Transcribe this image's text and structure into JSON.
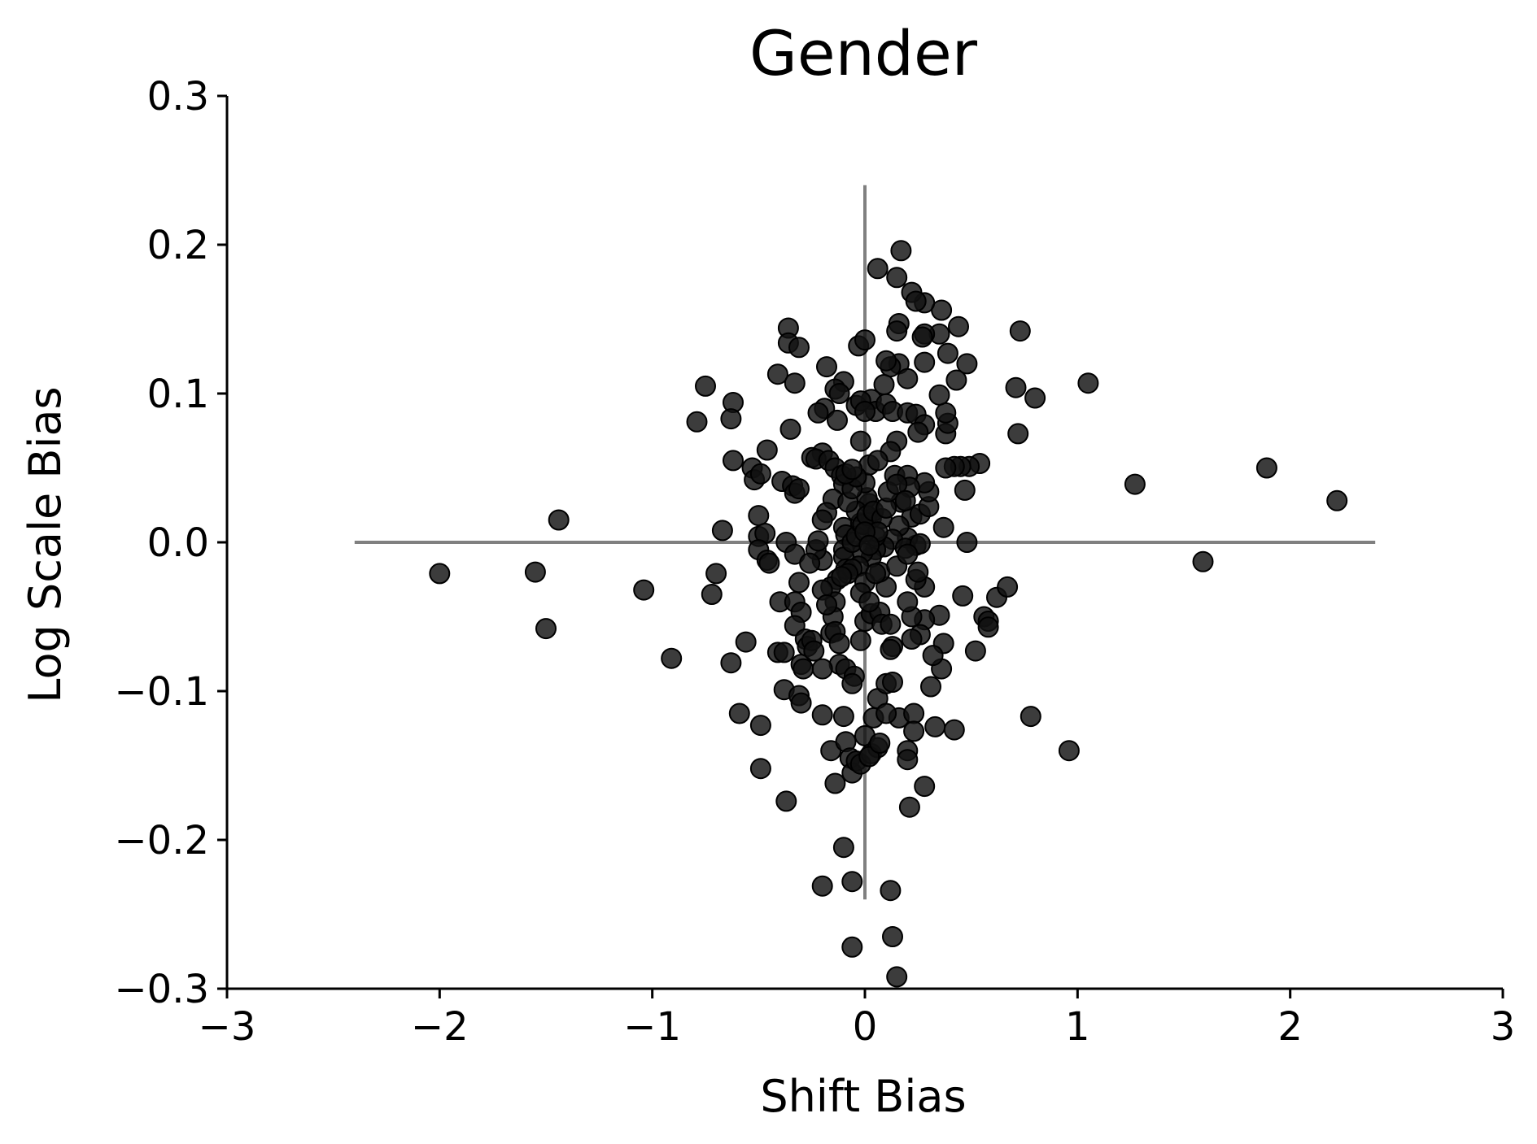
{
  "chart_data": {
    "type": "scatter",
    "title": "Gender",
    "xlabel": "Shift Bias",
    "ylabel": "Log Scale Bias",
    "xlim": [
      -3,
      3
    ],
    "ylim": [
      -0.3,
      0.3
    ],
    "xticks": [
      "−3",
      "−2",
      "−1",
      "0",
      "1",
      "2",
      "3"
    ],
    "yticks": [
      "−0.3",
      "−0.2",
      "−0.1",
      "0.0",
      "0.1",
      "0.2",
      "0.3"
    ],
    "grid": false,
    "reference_lines": {
      "horizontal": {
        "y": 0,
        "x_from": -2.4,
        "x_to": 2.4
      },
      "vertical": {
        "x": 0,
        "y_from": -0.24,
        "y_to": 0.24
      },
      "color": "#808080"
    },
    "marker_color": "#111111",
    "points": [
      [
        -2.0,
        -0.021
      ],
      [
        -1.55,
        -0.02
      ],
      [
        -1.44,
        0.015
      ],
      [
        -1.5,
        -0.058
      ],
      [
        -1.04,
        -0.032
      ],
      [
        -0.91,
        -0.078
      ],
      [
        -0.75,
        0.105
      ],
      [
        -0.79,
        0.081
      ],
      [
        -0.62,
        0.094
      ],
      [
        -0.63,
        0.083
      ],
      [
        -0.62,
        0.055
      ],
      [
        -0.67,
        0.008
      ],
      [
        -0.7,
        -0.021
      ],
      [
        -0.72,
        -0.035
      ],
      [
        -0.63,
        -0.081
      ],
      [
        -0.56,
        -0.067
      ],
      [
        -0.59,
        -0.115
      ],
      [
        -0.49,
        -0.123
      ],
      [
        -0.49,
        -0.152
      ],
      [
        -0.37,
        -0.174
      ],
      [
        -0.53,
        0.05
      ],
      [
        -0.52,
        0.042
      ],
      [
        -0.49,
        0.046
      ],
      [
        -0.46,
        0.062
      ],
      [
        -0.41,
        0.113
      ],
      [
        -0.36,
        0.144
      ],
      [
        -0.36,
        0.134
      ],
      [
        -0.31,
        0.131
      ],
      [
        -0.33,
        0.107
      ],
      [
        -0.35,
        0.076
      ],
      [
        -0.39,
        0.041
      ],
      [
        -0.34,
        0.038
      ],
      [
        -0.33,
        0.033
      ],
      [
        -0.31,
        0.036
      ],
      [
        -0.5,
        0.018
      ],
      [
        -0.5,
        0.004
      ],
      [
        -0.47,
        0.006
      ],
      [
        -0.5,
        -0.005
      ],
      [
        -0.46,
        -0.012
      ],
      [
        -0.45,
        -0.014
      ],
      [
        -0.37,
        0.0
      ],
      [
        -0.33,
        -0.008
      ],
      [
        -0.31,
        -0.027
      ],
      [
        -0.4,
        -0.04
      ],
      [
        -0.33,
        -0.04
      ],
      [
        -0.3,
        -0.047
      ],
      [
        -0.33,
        -0.056
      ],
      [
        -0.28,
        -0.065
      ],
      [
        -0.27,
        -0.07
      ],
      [
        -0.3,
        -0.082
      ],
      [
        -0.41,
        -0.074
      ],
      [
        -0.38,
        -0.074
      ],
      [
        -0.38,
        -0.099
      ],
      [
        -0.31,
        -0.103
      ],
      [
        -0.3,
        -0.108
      ],
      [
        -0.2,
        -0.116
      ],
      [
        -0.16,
        -0.14
      ],
      [
        -0.14,
        -0.162
      ],
      [
        -0.1,
        -0.117
      ],
      [
        -0.09,
        -0.134
      ],
      [
        -0.07,
        -0.145
      ],
      [
        -0.06,
        -0.155
      ],
      [
        -0.2,
        -0.231
      ],
      [
        -0.06,
        -0.228
      ],
      [
        -0.1,
        -0.205
      ],
      [
        -0.06,
        -0.272
      ],
      [
        0.12,
        -0.234
      ],
      [
        0.13,
        -0.265
      ],
      [
        0.15,
        -0.292
      ],
      [
        -0.04,
        -0.147
      ],
      [
        -0.02,
        -0.149
      ],
      [
        0.0,
        -0.13
      ],
      [
        0.03,
        -0.142
      ],
      [
        0.06,
        -0.138
      ],
      [
        0.02,
        -0.144
      ],
      [
        0.04,
        -0.118
      ],
      [
        0.06,
        -0.105
      ],
      [
        0.1,
        -0.095
      ],
      [
        0.13,
        -0.094
      ],
      [
        0.16,
        -0.118
      ],
      [
        0.2,
        -0.14
      ],
      [
        0.2,
        -0.146
      ],
      [
        0.23,
        -0.115
      ],
      [
        0.23,
        -0.127
      ],
      [
        0.28,
        -0.164
      ],
      [
        0.21,
        -0.178
      ],
      [
        0.33,
        -0.124
      ],
      [
        0.42,
        -0.126
      ],
      [
        0.31,
        -0.097
      ],
      [
        0.36,
        -0.085
      ],
      [
        0.37,
        -0.068
      ],
      [
        0.32,
        -0.076
      ],
      [
        0.35,
        -0.049
      ],
      [
        0.28,
        -0.052
      ],
      [
        0.26,
        -0.062
      ],
      [
        0.22,
        -0.065
      ],
      [
        0.22,
        -0.05
      ],
      [
        0.2,
        -0.04
      ],
      [
        0.28,
        -0.03
      ],
      [
        0.24,
        -0.025
      ],
      [
        0.25,
        -0.02
      ],
      [
        0.24,
        -0.002
      ],
      [
        0.2,
        0.003
      ],
      [
        0.22,
        0.017
      ],
      [
        0.26,
        0.019
      ],
      [
        0.3,
        0.024
      ],
      [
        0.3,
        0.034
      ],
      [
        0.28,
        0.04
      ],
      [
        0.37,
        0.01
      ],
      [
        0.48,
        0.0
      ],
      [
        0.54,
        0.053
      ],
      [
        0.49,
        0.051
      ],
      [
        0.45,
        0.051
      ],
      [
        0.42,
        0.051
      ],
      [
        0.38,
        0.05
      ],
      [
        0.47,
        0.035
      ],
      [
        0.38,
        0.073
      ],
      [
        0.39,
        0.08
      ],
      [
        0.38,
        0.087
      ],
      [
        0.35,
        0.099
      ],
      [
        0.43,
        0.109
      ],
      [
        0.48,
        0.12
      ],
      [
        0.39,
        0.127
      ],
      [
        0.35,
        0.14
      ],
      [
        0.44,
        0.145
      ],
      [
        0.36,
        0.156
      ],
      [
        0.28,
        0.161
      ],
      [
        0.28,
        0.14
      ],
      [
        0.28,
        0.121
      ],
      [
        0.27,
        0.138
      ],
      [
        0.22,
        0.168
      ],
      [
        0.24,
        0.162
      ],
      [
        0.15,
        0.178
      ],
      [
        0.17,
        0.196
      ],
      [
        0.06,
        0.184
      ],
      [
        0.16,
        0.147
      ],
      [
        0.15,
        0.142
      ],
      [
        0.16,
        0.12
      ],
      [
        0.2,
        0.11
      ],
      [
        0.12,
        0.118
      ],
      [
        0.1,
        0.122
      ],
      [
        0.09,
        0.106
      ],
      [
        0.03,
        0.096
      ],
      [
        0.05,
        0.088
      ],
      [
        0.1,
        0.093
      ],
      [
        0.13,
        0.088
      ],
      [
        0.2,
        0.087
      ],
      [
        0.24,
        0.086
      ],
      [
        0.28,
        0.079
      ],
      [
        0.25,
        0.074
      ],
      [
        0.15,
        0.068
      ],
      [
        0.12,
        0.061
      ],
      [
        0.14,
        0.045
      ],
      [
        0.2,
        0.045
      ],
      [
        0.21,
        0.037
      ],
      [
        0.17,
        0.027
      ],
      [
        0.16,
        0.011
      ],
      [
        0.13,
        0.002
      ],
      [
        0.09,
        -0.003
      ],
      [
        0.05,
        -0.005
      ],
      [
        0.05,
        0.004
      ],
      [
        0.03,
        0.016
      ],
      [
        0.02,
        0.026
      ],
      [
        0.01,
        0.03
      ],
      [
        0.0,
        0.04
      ],
      [
        0.02,
        0.052
      ],
      [
        0.06,
        0.055
      ],
      [
        -0.02,
        0.068
      ],
      [
        -0.04,
        0.092
      ],
      [
        -0.02,
        0.095
      ],
      [
        0.0,
        0.088
      ],
      [
        -0.03,
        0.132
      ],
      [
        0.0,
        0.136
      ],
      [
        -0.1,
        0.108
      ],
      [
        -0.14,
        0.103
      ],
      [
        -0.18,
        0.118
      ],
      [
        -0.12,
        0.1
      ],
      [
        -0.19,
        0.09
      ],
      [
        -0.22,
        0.087
      ],
      [
        -0.13,
        0.082
      ],
      [
        -0.2,
        0.06
      ],
      [
        -0.25,
        0.057
      ],
      [
        -0.23,
        0.056
      ],
      [
        -0.17,
        0.055
      ],
      [
        -0.14,
        0.05
      ],
      [
        -0.11,
        0.045
      ],
      [
        -0.1,
        0.039
      ],
      [
        -0.15,
        0.029
      ],
      [
        -0.18,
        0.02
      ],
      [
        -0.2,
        0.015
      ],
      [
        -0.1,
        0.01
      ],
      [
        -0.09,
        0.005
      ],
      [
        -0.1,
        -0.005
      ],
      [
        -0.1,
        -0.01
      ],
      [
        -0.09,
        -0.018
      ],
      [
        -0.13,
        -0.025
      ],
      [
        -0.16,
        -0.03
      ],
      [
        -0.14,
        -0.04
      ],
      [
        -0.15,
        -0.05
      ],
      [
        -0.16,
        -0.061
      ],
      [
        -0.14,
        -0.06
      ],
      [
        -0.12,
        -0.068
      ],
      [
        -0.12,
        -0.082
      ],
      [
        -0.09,
        -0.085
      ],
      [
        -0.05,
        -0.09
      ],
      [
        -0.06,
        -0.095
      ],
      [
        -0.02,
        -0.066
      ],
      [
        0.0,
        -0.053
      ],
      [
        0.03,
        -0.048
      ],
      [
        0.07,
        -0.047
      ],
      [
        0.08,
        -0.055
      ],
      [
        0.12,
        -0.055
      ],
      [
        0.13,
        -0.07
      ],
      [
        0.12,
        -0.072
      ],
      [
        0.1,
        -0.03
      ],
      [
        0.07,
        -0.02
      ],
      [
        0.03,
        -0.01
      ],
      [
        -0.01,
        -0.007
      ],
      [
        -0.03,
        -0.016
      ],
      [
        -0.06,
        -0.018
      ],
      [
        -0.08,
        -0.021
      ],
      [
        -0.11,
        -0.023
      ],
      [
        -0.06,
        0.0
      ],
      [
        -0.04,
        0.004
      ],
      [
        -0.02,
        0.013
      ],
      [
        -0.04,
        0.021
      ],
      [
        -0.08,
        0.027
      ],
      [
        -0.06,
        0.036
      ],
      [
        -0.04,
        0.044
      ],
      [
        -0.09,
        0.046
      ],
      [
        -0.06,
        0.049
      ],
      [
        -0.01,
        0.012
      ],
      [
        0.01,
        0.018
      ],
      [
        0.04,
        0.021
      ],
      [
        0.08,
        0.016
      ],
      [
        0.1,
        0.023
      ],
      [
        0.11,
        0.034
      ],
      [
        0.06,
        0.007
      ],
      [
        0.0,
        0.007
      ],
      [
        0.02,
        -0.002
      ],
      [
        0.0,
        -0.027
      ],
      [
        -0.02,
        -0.034
      ],
      [
        0.02,
        -0.04
      ],
      [
        0.05,
        -0.021
      ],
      [
        0.15,
        -0.016
      ],
      [
        0.19,
        -0.004
      ],
      [
        -0.2,
        -0.012
      ],
      [
        -0.23,
        -0.005
      ],
      [
        -0.22,
        0.001
      ],
      [
        -0.26,
        -0.014
      ],
      [
        -0.2,
        -0.032
      ],
      [
        -0.18,
        -0.042
      ],
      [
        -0.25,
        -0.066
      ],
      [
        -0.24,
        -0.073
      ],
      [
        -0.29,
        -0.085
      ],
      [
        -0.2,
        -0.085
      ],
      [
        0.15,
        0.039
      ],
      [
        0.19,
        0.028
      ],
      [
        0.26,
        -0.001
      ],
      [
        0.2,
        -0.008
      ],
      [
        0.56,
        -0.05
      ],
      [
        0.58,
        -0.053
      ],
      [
        0.58,
        -0.057
      ],
      [
        0.62,
        -0.037
      ],
      [
        0.67,
        -0.03
      ],
      [
        0.52,
        -0.073
      ],
      [
        0.46,
        -0.036
      ],
      [
        0.71,
        0.104
      ],
      [
        0.72,
        0.073
      ],
      [
        0.73,
        0.142
      ],
      [
        0.8,
        0.097
      ],
      [
        1.05,
        0.107
      ],
      [
        1.27,
        0.039
      ],
      [
        1.59,
        -0.013
      ],
      [
        1.89,
        0.05
      ],
      [
        2.22,
        0.028
      ],
      [
        0.78,
        -0.117
      ],
      [
        0.96,
        -0.14
      ],
      [
        0.1,
        -0.115
      ],
      [
        0.07,
        -0.135
      ]
    ]
  }
}
